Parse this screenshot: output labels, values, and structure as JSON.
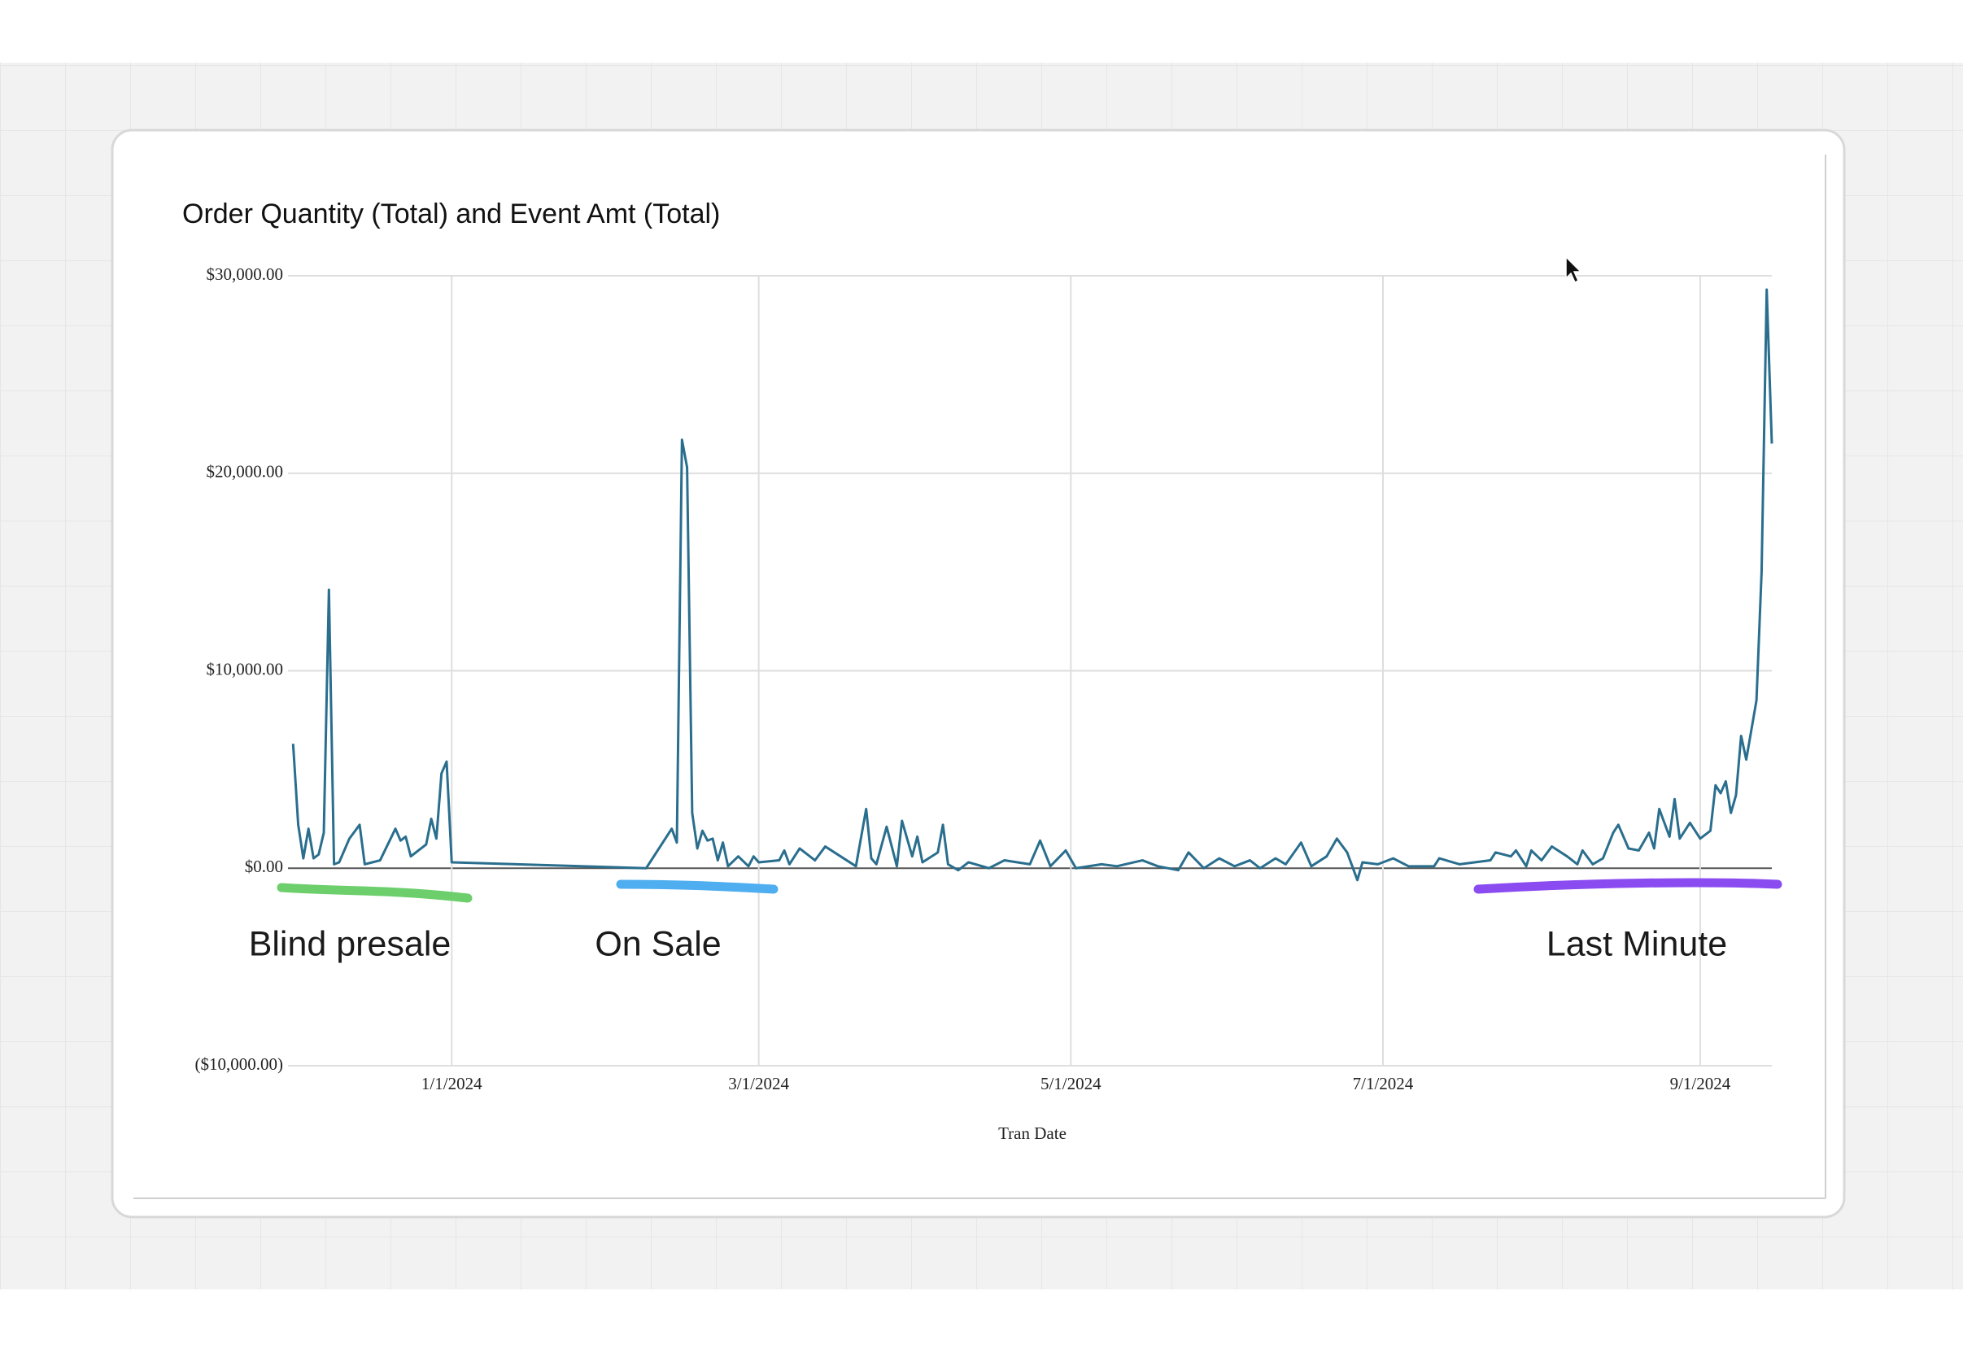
{
  "chart_data": {
    "type": "line",
    "title": "Order Quantity (Total) and Event Amt (Total)",
    "x_label": "Tran Date",
    "annotations": [
      "Blind presale",
      "On Sale",
      "Last Minute"
    ],
    "color": "#2a6e8e",
    "grid": true,
    "xlim": [
      "11/30/2023",
      "9/15/2024"
    ],
    "xticks": [
      "1/1/2024",
      "3/1/2024",
      "5/1/2024",
      "7/1/2024",
      "9/1/2024"
    ],
    "ylim": [
      -10000,
      30000
    ],
    "yticks": [
      {
        "value": -10000,
        "label": "($10,000.00)"
      },
      {
        "value": 0,
        "label": "$0.00"
      },
      {
        "value": 10000,
        "label": "$10,000.00"
      },
      {
        "value": 20000,
        "label": "$20,000.00"
      },
      {
        "value": 30000,
        "label": "$30,000.00"
      }
    ],
    "x": [
      "12/1/2023",
      "12/2/2023",
      "12/3/2023",
      "12/4/2023",
      "12/5/2023",
      "12/6/2023",
      "12/7/2023",
      "12/8/2023",
      "12/9/2023",
      "12/10/2023",
      "12/12/2023",
      "12/14/2023",
      "12/15/2023",
      "12/18/2023",
      "12/21/2023",
      "12/22/2023",
      "12/23/2023",
      "12/24/2023",
      "12/27/2023",
      "12/28/2023",
      "12/29/2023",
      "12/30/2023",
      "12/31/2023",
      "1/1/2024",
      "2/8/2024",
      "2/13/2024",
      "2/14/2024",
      "2/15/2024",
      "2/16/2024",
      "2/17/2024",
      "2/18/2024",
      "2/19/2024",
      "2/20/2024",
      "2/21/2024",
      "2/22/2024",
      "2/23/2024",
      "2/24/2024",
      "2/26/2024",
      "2/28/2024",
      "2/29/2024",
      "3/1/2024",
      "3/5/2024",
      "3/6/2024",
      "3/7/2024",
      "3/9/2024",
      "3/12/2024",
      "3/14/2024",
      "3/17/2024",
      "3/20/2024",
      "3/22/2024",
      "3/23/2024",
      "3/24/2024",
      "3/26/2024",
      "3/28/2024",
      "3/29/2024",
      "3/31/2024",
      "4/1/2024",
      "4/2/2024",
      "4/5/2024",
      "4/6/2024",
      "4/7/2024",
      "4/9/2024",
      "4/11/2024",
      "4/15/2024",
      "4/18/2024",
      "4/23/2024",
      "4/25/2024",
      "4/27/2024",
      "4/30/2024",
      "5/2/2024",
      "5/7/2024",
      "5/10/2024",
      "5/15/2024",
      "5/18/2024",
      "5/22/2024",
      "5/24/2024",
      "5/27/2024",
      "5/30/2024",
      "6/2/2024",
      "6/5/2024",
      "6/7/2024",
      "6/10/2024",
      "6/12/2024",
      "6/15/2024",
      "6/17/2024",
      "6/20/2024",
      "6/22/2024",
      "6/24/2024",
      "6/26/2024",
      "6/27/2024",
      "6/30/2024",
      "7/3/2024",
      "7/6/2024",
      "7/11/2024",
      "7/12/2024",
      "7/16/2024",
      "7/22/2024",
      "7/23/2024",
      "7/26/2024",
      "7/27/2024",
      "7/29/2024",
      "7/30/2024",
      "8/1/2024",
      "8/3/2024",
      "8/6/2024",
      "8/8/2024",
      "8/9/2024",
      "8/11/2024",
      "8/13/2024",
      "8/15/2024",
      "8/16/2024",
      "8/18/2024",
      "8/20/2024",
      "8/22/2024",
      "8/23/2024",
      "8/24/2024",
      "8/26/2024",
      "8/27/2024",
      "8/28/2024",
      "8/30/2024",
      "9/1/2024",
      "9/3/2024",
      "9/4/2024",
      "9/5/2024",
      "9/6/2024",
      "9/7/2024",
      "9/8/2024",
      "9/9/2024",
      "9/10/2024",
      "9/12/2024",
      "9/13/2024",
      "9/14/2024",
      "9/15/2024"
    ],
    "values": [
      6300,
      2200,
      500,
      2000,
      500,
      700,
      1800,
      14100,
      200,
      300,
      1500,
      2200,
      200,
      400,
      2000,
      1400,
      1600,
      600,
      1200,
      2500,
      1500,
      4800,
      5400,
      300,
      0,
      2000,
      1300,
      21700,
      20300,
      2800,
      1000,
      1900,
      1400,
      1500,
      400,
      1300,
      100,
      600,
      100,
      600,
      300,
      400,
      900,
      200,
      1000,
      400,
      1100,
      600,
      100,
      3000,
      500,
      200,
      2100,
      100,
      2400,
      600,
      1600,
      300,
      800,
      2200,
      200,
      -100,
      300,
      0,
      400,
      200,
      1400,
      100,
      900,
      0,
      200,
      100,
      400,
      100,
      -100,
      800,
      0,
      500,
      100,
      400,
      0,
      500,
      200,
      1300,
      100,
      600,
      1500,
      800,
      -600,
      300,
      200,
      500,
      100,
      100,
      500,
      200,
      400,
      800,
      600,
      900,
      100,
      900,
      400,
      1100,
      600,
      200,
      900,
      200,
      500,
      1800,
      2200,
      1000,
      900,
      1800,
      1000,
      3000,
      1600,
      3500,
      1500,
      2300,
      1500,
      1900,
      4200,
      3800,
      4400,
      2800,
      3700,
      6700,
      5500,
      8500,
      15000,
      29300,
      21500
    ]
  }
}
